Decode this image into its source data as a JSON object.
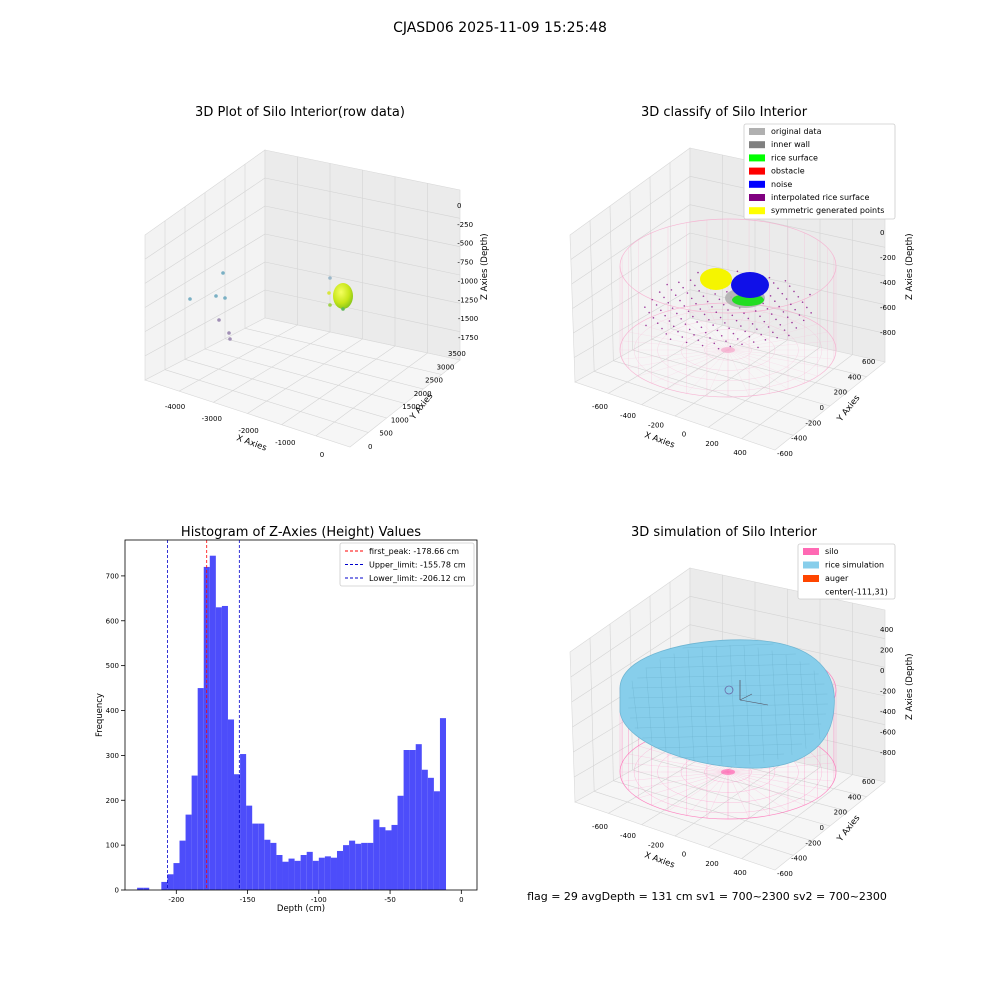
{
  "suptitle": "CJASD06 2025-11-09 15:25:48",
  "status_line": "flag = 29  avgDepth = 131 cm  sv1 = 700~2300  sv2 = 700~2300",
  "colors": {
    "histogram_bar": "#4d4dfa",
    "first_peak_line": "#ff0000",
    "limit_line": "#0000cc",
    "silo": "#ff69b4",
    "rice_simulation": "#87ceeb",
    "auger": "#ff4500"
  },
  "chart_data": [
    {
      "type": "scatter3d",
      "title": "3D Plot of Silo Interior(row data)",
      "xlabel": "X Axies",
      "ylabel": "Y Axies",
      "zlabel": "Z Axies (Depth)",
      "x_ticks": [
        "-4000",
        "-3000",
        "-2000",
        "-1000",
        "0"
      ],
      "y_ticks": [
        "0",
        "500",
        "1000",
        "1500",
        "2000",
        "2500",
        "3000",
        "3500"
      ],
      "z_ticks": [
        "0",
        "-250",
        "-500",
        "-750",
        "-1000",
        "-1250",
        "-1500",
        "-1750"
      ],
      "grid": true
    },
    {
      "type": "scatter3d",
      "title": "3D classify of Silo Interior",
      "xlabel": "X Axies",
      "ylabel": "Y Axies",
      "zlabel": "Z Axies (Depth)",
      "x_ticks": [
        "-600",
        "-400",
        "-200",
        "0",
        "200",
        "400"
      ],
      "y_ticks": [
        "-600",
        "-400",
        "-200",
        "0",
        "200",
        "400",
        "600"
      ],
      "z_ticks": [
        "200",
        "0",
        "-200",
        "-400",
        "-600",
        "-800"
      ],
      "legend_position": "top-right",
      "legend": [
        {
          "label": "original data",
          "color": "#b0b0b0"
        },
        {
          "label": "inner wall",
          "color": "#808080"
        },
        {
          "label": "rice surface",
          "color": "#00ff00"
        },
        {
          "label": "obstacle",
          "color": "#ff0000"
        },
        {
          "label": "noise",
          "color": "#0000ff"
        },
        {
          "label": "interpolated rice surface",
          "color": "#800080"
        },
        {
          "label": "symmetric generated points",
          "color": "#ffff00"
        }
      ],
      "grid": true
    },
    {
      "type": "bar",
      "title": "Histogram of Z-Axies (Height) Values",
      "xlabel": "Depth (cm)",
      "ylabel": "Frequency",
      "xlim": [
        -236,
        11
      ],
      "ylim": [
        0,
        780
      ],
      "x_ticks": [
        -200,
        -150,
        -100,
        -50,
        0
      ],
      "y_ticks": [
        0,
        100,
        200,
        300,
        400,
        500,
        600,
        700
      ],
      "bin_width": 4.25,
      "bin_start": -227.5,
      "values": [
        5,
        5,
        0,
        0,
        18,
        35,
        60,
        110,
        168,
        255,
        450,
        720,
        745,
        630,
        633,
        380,
        258,
        303,
        188,
        148,
        148,
        112,
        105,
        78,
        63,
        70,
        65,
        78,
        85,
        65,
        72,
        75,
        72,
        87,
        100,
        110,
        103,
        105,
        105,
        157,
        140,
        133,
        145,
        210,
        312,
        312,
        325,
        268,
        250,
        220,
        383
      ],
      "vlines": [
        {
          "x": -178.66,
          "color": "#ff0000",
          "label": "first_peak: -178.66 cm"
        },
        {
          "x": -155.78,
          "color": "#0000cc",
          "label": "Upper_limit: -155.78 cm"
        },
        {
          "x": -206.12,
          "color": "#0000cc",
          "label": "Lower_limit: -206.12 cm"
        }
      ],
      "legend_position": "top-right",
      "grid": false
    },
    {
      "type": "surface3d",
      "title": "3D simulation of Silo Interior",
      "xlabel": "X Axies",
      "ylabel": "Y Axies",
      "zlabel": "Z Axies (Depth)",
      "x_ticks": [
        "-600",
        "-400",
        "-200",
        "0",
        "200",
        "400"
      ],
      "y_ticks": [
        "-600",
        "-400",
        "-200",
        "0",
        "200",
        "400",
        "600"
      ],
      "z_ticks": [
        "400",
        "200",
        "0",
        "-200",
        "-400",
        "-600",
        "-800"
      ],
      "legend_position": "top-right",
      "legend": [
        {
          "label": "silo",
          "color": "#ff69b4"
        },
        {
          "label": "rice simulation",
          "color": "#87ceeb"
        },
        {
          "label": "auger",
          "color": "#ff4500"
        },
        {
          "label": "center(-111,31)",
          "color": ""
        }
      ],
      "grid": true
    }
  ]
}
